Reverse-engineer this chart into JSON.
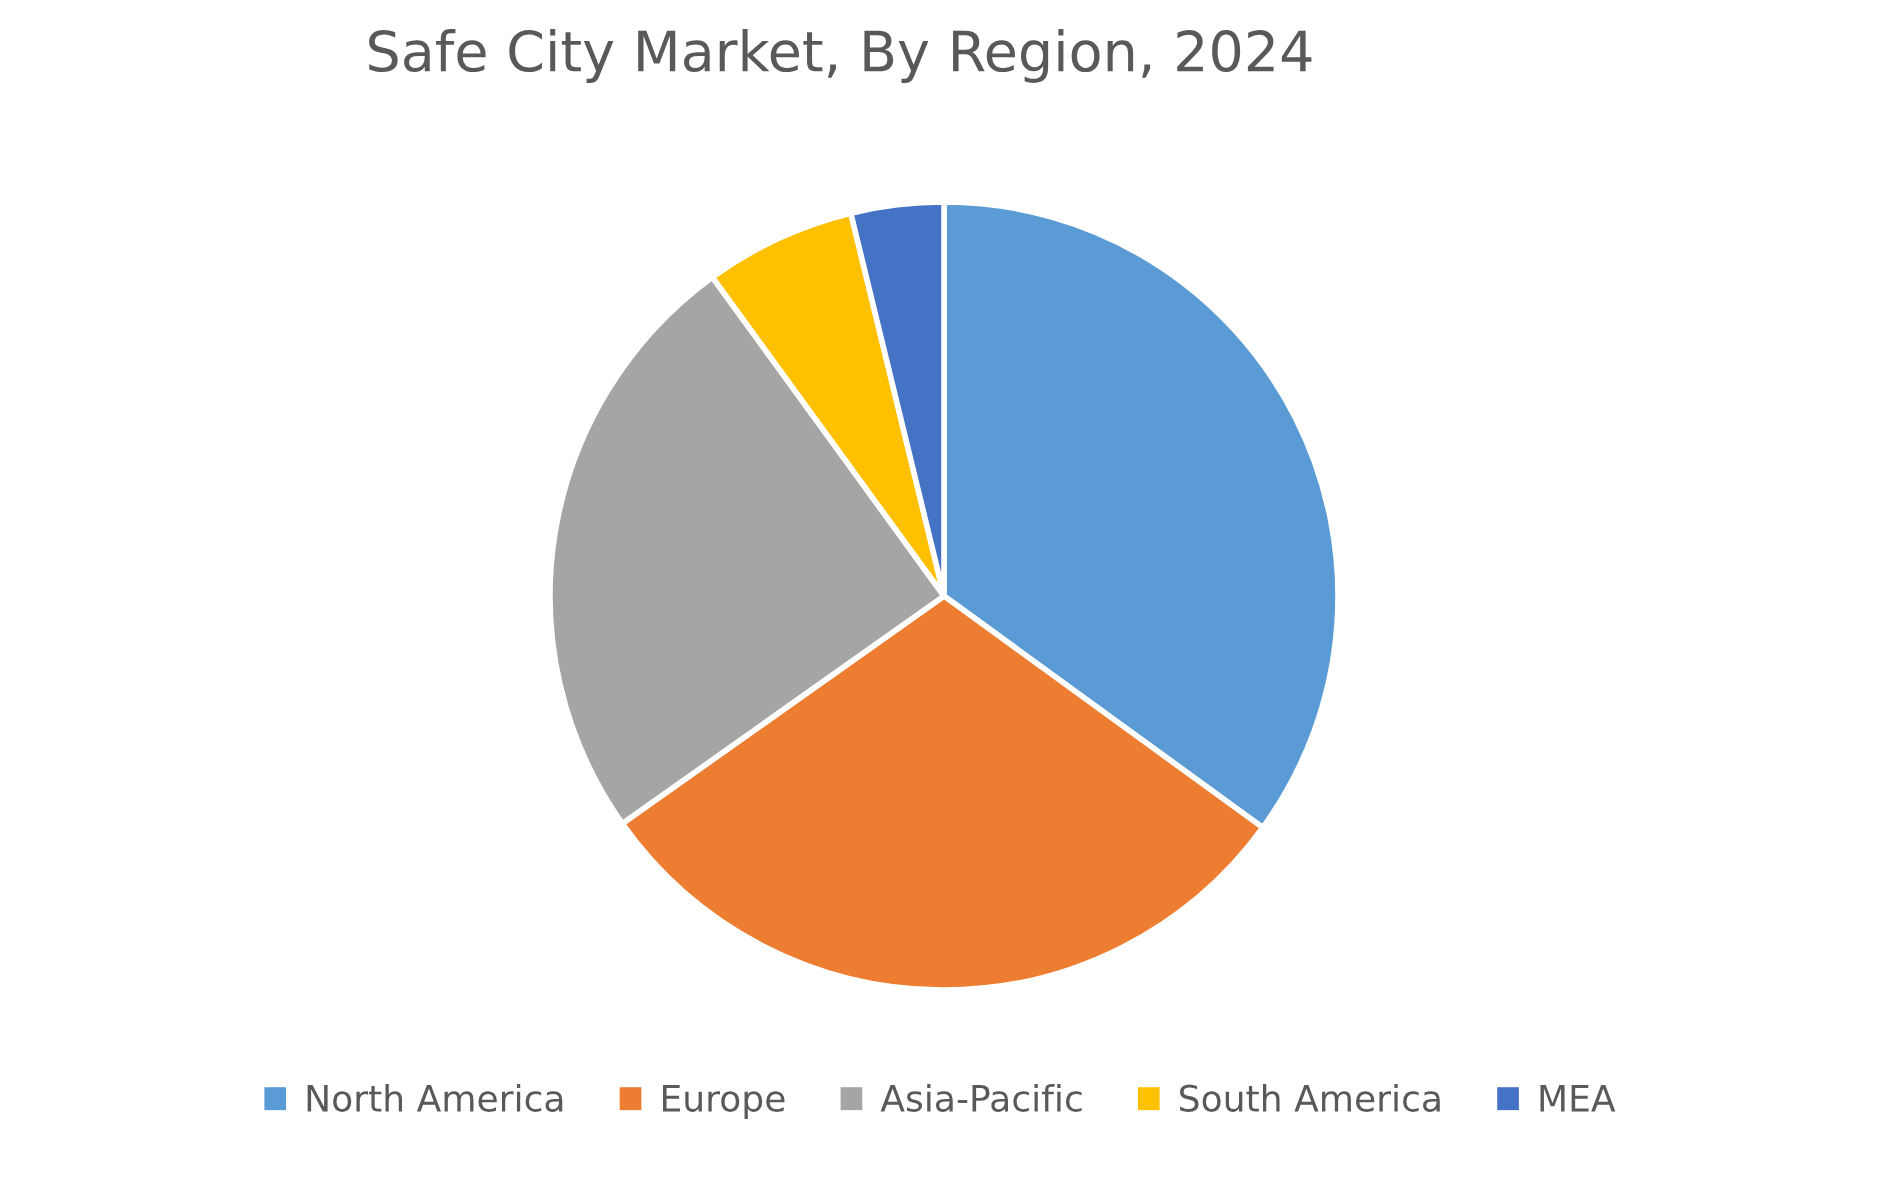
{
  "chart_data": {
    "type": "pie",
    "title": "Safe City Market, By Region, 2024",
    "categories": [
      "North America",
      "Europe",
      "Asia-Pacific",
      "South America",
      "MEA"
    ],
    "values": [
      35.0,
      30.2,
      24.8,
      6.2,
      3.8
    ],
    "colors": [
      "#5b9bd5",
      "#ed7d31",
      "#a5a5a5",
      "#ffc000",
      "#4472c4"
    ],
    "legend": "bottom"
  }
}
